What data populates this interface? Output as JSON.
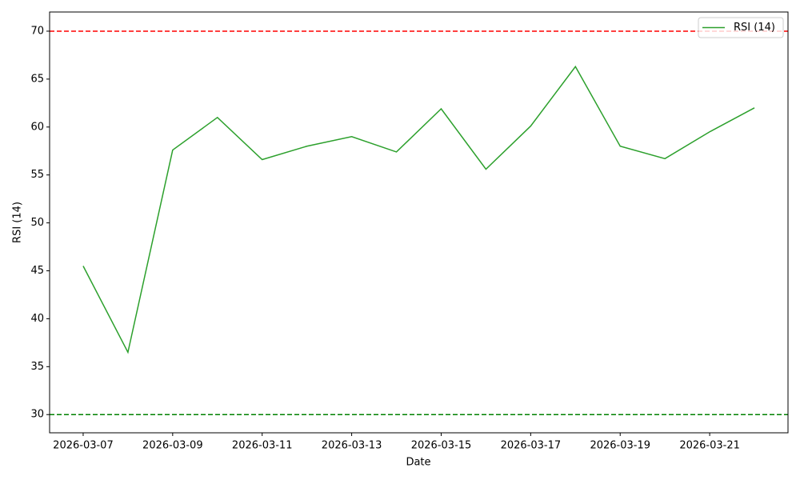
{
  "chart_data": {
    "type": "line",
    "xlabel": "Date",
    "ylabel": "RSI (14)",
    "x": [
      "2026-03-07",
      "2026-03-08",
      "2026-03-09",
      "2026-03-10",
      "2026-03-11",
      "2026-03-12",
      "2026-03-13",
      "2026-03-14",
      "2026-03-15",
      "2026-03-16",
      "2026-03-17",
      "2026-03-18",
      "2026-03-19",
      "2026-03-20",
      "2026-03-21",
      "2026-03-22"
    ],
    "series": [
      {
        "name": "RSI (14)",
        "color": "#2ca02c",
        "values": [
          45.5,
          36.5,
          57.6,
          61.0,
          56.6,
          58.0,
          59.0,
          57.4,
          61.9,
          55.6,
          60.1,
          66.3,
          58.0,
          56.7,
          59.5,
          62.0
        ]
      }
    ],
    "hlines": [
      {
        "value": 70,
        "color": "#ff0000"
      },
      {
        "value": 30,
        "color": "#008000"
      }
    ],
    "xlim": [
      "2026-03-06T06:00:00Z",
      "2026-03-22T18:00:00Z"
    ],
    "xticks": [
      "2026-03-07",
      "2026-03-09",
      "2026-03-11",
      "2026-03-13",
      "2026-03-15",
      "2026-03-17",
      "2026-03-19",
      "2026-03-21"
    ],
    "ylim": [
      28.1,
      72.0
    ],
    "yticks": [
      30,
      35,
      40,
      45,
      50,
      55,
      60,
      65,
      70
    ],
    "legend": "upper right"
  }
}
